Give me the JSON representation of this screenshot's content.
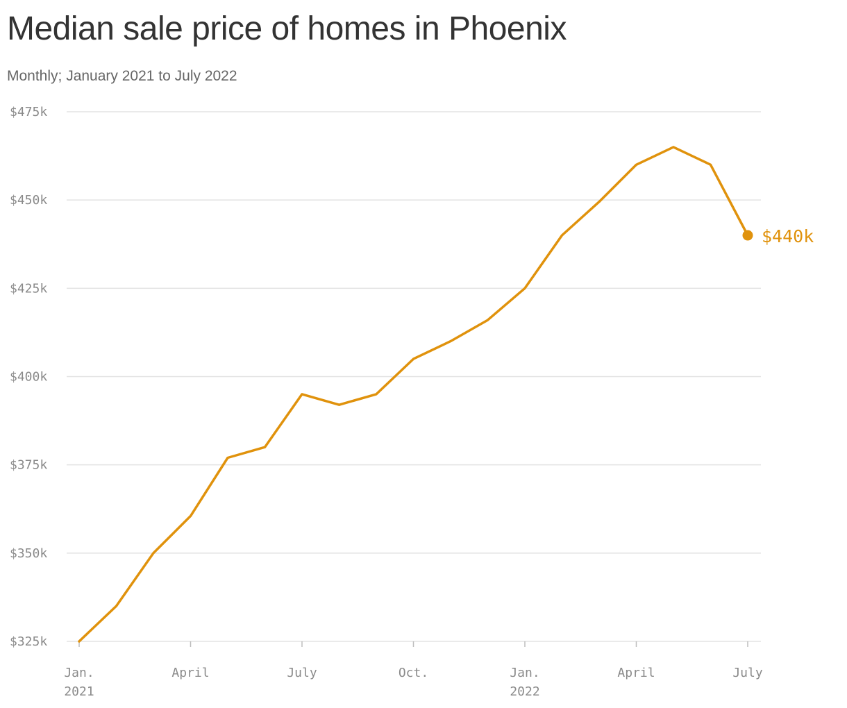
{
  "chart_data": {
    "type": "line",
    "title": "Median sale price of homes in Phoenix",
    "subtitle": "Monthly; January 2021 to July 2022",
    "x": [
      "2021-01",
      "2021-02",
      "2021-03",
      "2021-04",
      "2021-05",
      "2021-06",
      "2021-07",
      "2021-08",
      "2021-09",
      "2021-10",
      "2021-11",
      "2021-12",
      "2022-01",
      "2022-02",
      "2022-03",
      "2022-04",
      "2022-05",
      "2022-06",
      "2022-07"
    ],
    "series": [
      {
        "values": [
          325000,
          335000,
          350000,
          360500,
          377000,
          380000,
          395000,
          392000,
          395000,
          405000,
          410000,
          416000,
          425000,
          440000,
          449500,
          460000,
          465000,
          460000,
          440000
        ]
      }
    ],
    "ylim": [
      325000,
      475000
    ],
    "y_ticks": [
      {
        "value": 475000,
        "label": "$475k"
      },
      {
        "value": 450000,
        "label": "$450k"
      },
      {
        "value": 425000,
        "label": "$425k"
      },
      {
        "value": 400000,
        "label": "$400k"
      },
      {
        "value": 375000,
        "label": "$375k"
      },
      {
        "value": 350000,
        "label": "$350k"
      },
      {
        "value": 325000,
        "label": "$325k"
      }
    ],
    "x_ticks": [
      {
        "x": "2021-01",
        "lines": [
          "Jan.",
          "2021"
        ]
      },
      {
        "x": "2021-04",
        "lines": [
          "April"
        ]
      },
      {
        "x": "2021-07",
        "lines": [
          "July"
        ]
      },
      {
        "x": "2021-10",
        "lines": [
          "Oct."
        ]
      },
      {
        "x": "2022-01",
        "lines": [
          "Jan.",
          "2022"
        ]
      },
      {
        "x": "2022-04",
        "lines": [
          "April"
        ]
      },
      {
        "x": "2022-07",
        "lines": [
          "July"
        ]
      }
    ],
    "end_label": "$440k",
    "grid": true,
    "line_color": "#e0920c",
    "grid_color": "#e3e3e3"
  }
}
